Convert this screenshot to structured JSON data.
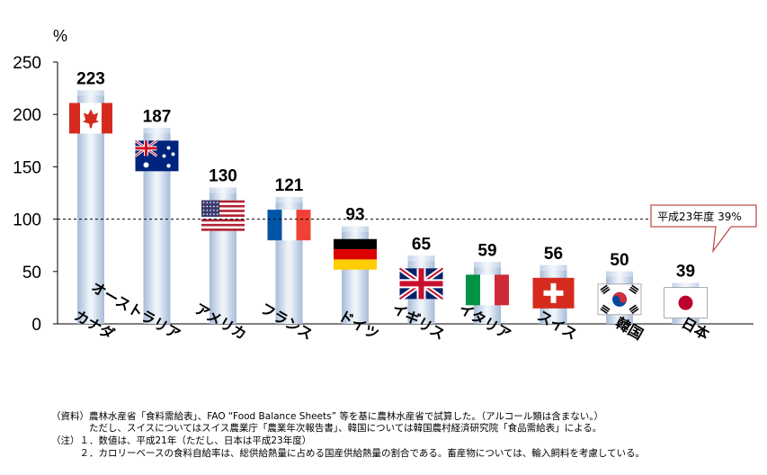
{
  "chart_data": {
    "type": "bar",
    "unit_label": "%",
    "categories": [
      "カナダ",
      "オーストラリア",
      "アメリカ",
      "フランス",
      "ドイツ",
      "イギリス",
      "イタリア",
      "スイス",
      "韓国",
      "日本"
    ],
    "values": [
      223,
      187,
      130,
      121,
      93,
      65,
      59,
      56,
      50,
      39
    ],
    "value_labels": [
      "223",
      "187",
      "130",
      "121",
      "93",
      "65",
      "59",
      "56",
      "50",
      "39"
    ],
    "flags": [
      "canada-flag",
      "australia-flag",
      "usa-flag",
      "france-flag",
      "germany-flag",
      "uk-flag",
      "italy-flag",
      "switzerland-flag",
      "korea-flag",
      "japan-flag"
    ],
    "ylim": [
      0,
      250
    ],
    "yticks": [
      0,
      50,
      100,
      150,
      200,
      250
    ],
    "ytick_labels": [
      "0",
      "50",
      "100",
      "150",
      "200",
      "250"
    ],
    "reference_line": 100,
    "callout": {
      "text": "平成23年度  39%",
      "category": "日本"
    },
    "colors": {
      "bar_edge": "#a6bcd8",
      "bar_center": "#eef3fa",
      "callout_border": "#c0504d"
    }
  },
  "notes": [
    "（資料）農林水産省「食料需給表」、FAO “Food Balance Sheets” 等を基に農林水産省で試算した。（アルコール類は含まない。）",
    "　　　　ただし、スイスについてはスイス農業庁「農業年次報告書」、韓国については韓国農村経済研究院「食品需給表」による。",
    "（注）１．数値は、平成21年（ただし、日本は平成23年度）",
    "　　　２．カロリーベースの食料自給率は、総供給熱量に占める国産供給熱量の割合である。畜産物については、輸入飼料を考慮している。"
  ]
}
